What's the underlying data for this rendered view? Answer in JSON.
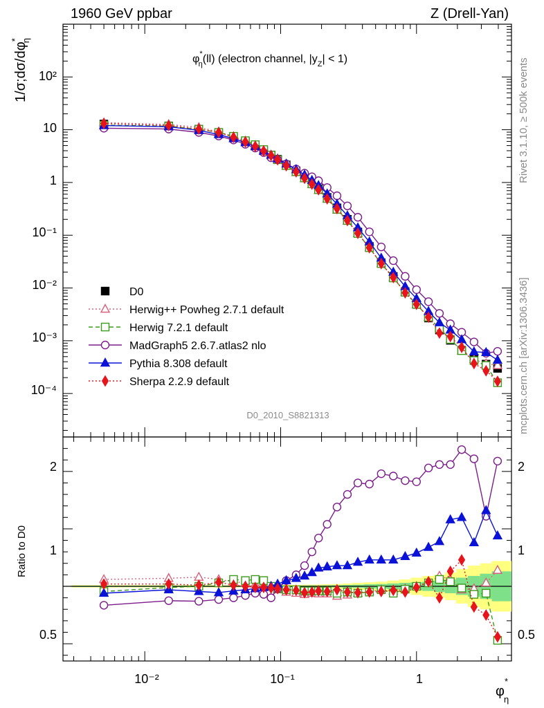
{
  "header": {
    "left_title": "1960 GeV ppbar",
    "right_title": "Z (Drell-Yan)"
  },
  "side_labels": {
    "rivet": "Rivet 3.1.10, ≥ 500k events",
    "mcplots": "mcplots.cern.ch [arXiv:1306.3436]"
  },
  "chart_data": [
    {
      "type": "scatter",
      "title": "φ*η(ll) (electron channel, |yZ| < 1)",
      "title_parts": {
        "phi": "φ",
        "sup": "*",
        "sub": "η",
        "rest": "(ll) (electron channel, |y",
        "sub2": "Z",
        "end": "| < 1)"
      },
      "analysis_label": "D0_2010_S8821313",
      "ylabel": "1/σ;dσ/dφ*η",
      "ylabel_parts": {
        "main": "1/σ;dσ/dφ",
        "sup": "*",
        "sub": "η"
      },
      "xlabel": "φ*η",
      "xlabel_parts": {
        "main": "φ",
        "sup": "*",
        "sub": "η"
      },
      "x_scale": "log",
      "y_scale": "log",
      "xlim": [
        0.0025,
        5
      ],
      "ylim": [
        1.5e-05,
        1000
      ],
      "x_tick_labels": [
        "10⁻²",
        "10⁻¹",
        "1"
      ],
      "y_tick_labels": [
        "10⁻⁴",
        "10⁻³",
        "10⁻²",
        "10⁻¹",
        "1",
        "10",
        "10²"
      ],
      "legend_position": "center-left",
      "x": [
        0.005,
        0.015,
        0.025,
        0.035,
        0.045,
        0.055,
        0.065,
        0.075,
        0.085,
        0.095,
        0.11,
        0.13,
        0.15,
        0.17,
        0.19,
        0.22,
        0.26,
        0.31,
        0.37,
        0.45,
        0.55,
        0.675,
        0.825,
        1.0,
        1.225,
        1.475,
        1.775,
        2.15,
        2.65,
        3.25,
        3.95
      ],
      "series": [
        {
          "name": "D0",
          "color": "#000000",
          "marker": "square-filled",
          "values": [
            12.8,
            11.8,
            10.2,
            8.6,
            7.1,
            5.9,
            4.9,
            4.0,
            3.3,
            2.75,
            2.15,
            1.65,
            1.27,
            0.98,
            0.76,
            0.52,
            0.33,
            0.2,
            0.115,
            0.061,
            0.03,
            0.0165,
            0.0085,
            0.0049,
            0.0027,
            0.0016,
            0.00102,
            0.00066,
            0.00045,
            0.00036,
            0.0003
          ]
        },
        {
          "name": "Herwig++ Powheg 2.7.1 default",
          "color": "#d9607a",
          "marker": "triangle-open",
          "dash": "dotted",
          "values": [
            13.6,
            12.6,
            11.1,
            9.1,
            7.4,
            6.1,
            5.0,
            4.05,
            3.3,
            2.66,
            2.04,
            1.55,
            1.18,
            0.92,
            0.71,
            0.485,
            0.3,
            0.185,
            0.108,
            0.058,
            0.029,
            0.0158,
            0.0083,
            0.0049,
            0.0028,
            0.00175,
            0.00108,
            0.00064,
            0.00044,
            0.00037,
            0.00034
          ]
        },
        {
          "name": "Herwig 7.2.1 default",
          "color": "#3a9a1a",
          "marker": "square-open",
          "dash": "dashed",
          "values": [
            12.2,
            11.7,
            10.2,
            8.9,
            7.5,
            6.2,
            5.2,
            4.2,
            3.3,
            2.7,
            2.09,
            1.6,
            1.22,
            0.94,
            0.73,
            0.5,
            0.31,
            0.19,
            0.108,
            0.058,
            0.029,
            0.0155,
            0.0083,
            0.0049,
            0.0028,
            0.0017,
            0.00106,
            0.00065,
            0.00042,
            0.00034,
            0.00016
          ]
        },
        {
          "name": "MadGraph5 2.6.7.atlas2 nlo",
          "color": "#7b1c8a",
          "marker": "circle-open",
          "dash": "solid",
          "values": [
            10.7,
            10.3,
            8.9,
            7.6,
            6.4,
            5.3,
            4.5,
            3.7,
            2.95,
            2.7,
            2.25,
            1.8,
            1.5,
            1.28,
            1.08,
            0.8,
            0.56,
            0.36,
            0.219,
            0.116,
            0.06,
            0.033,
            0.0166,
            0.0093,
            0.0055,
            0.0033,
            0.0021,
            0.00145,
            0.00095,
            0.00058,
            0.00063
          ]
        },
        {
          "name": "Pythia 8.308 default",
          "color": "#0a12d8",
          "marker": "triangle-filled",
          "dash": "solid",
          "values": [
            12.0,
            11.4,
            9.7,
            8.1,
            6.8,
            5.7,
            4.8,
            3.95,
            3.3,
            2.8,
            2.25,
            1.76,
            1.39,
            1.1,
            0.88,
            0.61,
            0.39,
            0.235,
            0.139,
            0.075,
            0.037,
            0.02,
            0.0107,
            0.0063,
            0.0036,
            0.0022,
            0.0016,
            0.00105,
            0.00062,
            0.0006,
            0.00043
          ]
        },
        {
          "name": "Sherpa 2.2.9 default",
          "color": "#e8141c",
          "marker": "diamond-filled",
          "dash": "dotted",
          "values": [
            13.1,
            12.0,
            10.3,
            8.9,
            7.2,
            5.9,
            4.85,
            3.95,
            3.25,
            2.7,
            2.08,
            1.59,
            1.2,
            0.93,
            0.73,
            0.49,
            0.32,
            0.19,
            0.109,
            0.058,
            0.029,
            0.0158,
            0.0081,
            0.0049,
            0.0028,
            0.0014,
            0.0012,
            0.00075,
            0.00037,
            0.00027,
            0.00017
          ]
        }
      ]
    },
    {
      "type": "line",
      "ylabel": "Ratio to D0",
      "x_scale": "log",
      "ylim": [
        0.35,
        2.3
      ],
      "y_tick_labels": [
        "0.5",
        "1",
        "2"
      ],
      "x": [
        0.005,
        0.015,
        0.025,
        0.035,
        0.045,
        0.055,
        0.065,
        0.075,
        0.085,
        0.095,
        0.11,
        0.13,
        0.15,
        0.17,
        0.19,
        0.22,
        0.26,
        0.31,
        0.37,
        0.45,
        0.55,
        0.675,
        0.825,
        1.0,
        1.225,
        1.475,
        1.775,
        2.15,
        2.65,
        3.25,
        3.95
      ],
      "uncertainty_band": {
        "stat_color": "#7fe08a",
        "syst_color": "#ffff80",
        "stat": [
          0.005,
          0.005,
          0.005,
          0.005,
          0.005,
          0.005,
          0.005,
          0.005,
          0.005,
          0.005,
          0.006,
          0.006,
          0.007,
          0.008,
          0.008,
          0.009,
          0.01,
          0.012,
          0.014,
          0.018,
          0.02,
          0.025,
          0.03,
          0.035,
          0.04,
          0.05,
          0.06,
          0.075,
          0.09,
          0.11,
          0.13
        ],
        "total": [
          0.01,
          0.01,
          0.01,
          0.01,
          0.01,
          0.01,
          0.01,
          0.01,
          0.01,
          0.01,
          0.012,
          0.012,
          0.014,
          0.015,
          0.016,
          0.018,
          0.02,
          0.025,
          0.03,
          0.035,
          0.04,
          0.05,
          0.06,
          0.075,
          0.09,
          0.1,
          0.12,
          0.15,
          0.18,
          0.2,
          0.22
        ]
      },
      "series": [
        {
          "name": "Herwig++ Powheg 2.7.1 default",
          "color": "#d9607a",
          "marker": "triangle-open",
          "dash": "dotted",
          "values": [
            1.06,
            1.07,
            1.08,
            1.06,
            1.04,
            1.03,
            1.02,
            1.01,
            1.0,
            0.97,
            0.95,
            0.94,
            0.93,
            0.94,
            0.935,
            0.935,
            0.915,
            0.925,
            0.94,
            0.955,
            0.97,
            0.96,
            0.98,
            1.0,
            1.04,
            1.09,
            1.06,
            0.97,
            0.98,
            1.03,
            1.14
          ]
        },
        {
          "name": "Herwig 7.2.1 default",
          "color": "#3a9a1a",
          "marker": "square-open",
          "dash": "dashed",
          "values": [
            0.955,
            0.99,
            1.0,
            1.03,
            1.06,
            1.05,
            1.06,
            1.05,
            1.0,
            0.98,
            0.97,
            0.97,
            0.96,
            0.96,
            0.96,
            0.96,
            0.94,
            0.95,
            0.94,
            0.95,
            0.97,
            0.94,
            0.975,
            1.0,
            1.03,
            1.06,
            1.04,
            0.985,
            0.93,
            0.94,
            0.53
          ]
        },
        {
          "name": "MadGraph5 2.6.7.atlas2 nlo",
          "color": "#7b1c8a",
          "marker": "circle-open",
          "dash": "solid",
          "values": [
            0.835,
            0.875,
            0.87,
            0.885,
            0.9,
            0.92,
            0.94,
            0.93,
            0.9,
            0.98,
            1.05,
            1.1,
            1.18,
            1.3,
            1.42,
            1.54,
            1.69,
            1.8,
            1.9,
            1.89,
            1.98,
            1.96,
            1.92,
            1.91,
            2.03,
            2.06,
            2.06,
            2.19,
            2.11,
            1.61,
            2.09
          ]
        },
        {
          "name": "Pythia 8.308 default",
          "color": "#0a12d8",
          "marker": "triangle-filled",
          "dash": "solid",
          "values": [
            0.94,
            0.97,
            0.955,
            0.945,
            0.96,
            0.97,
            0.98,
            0.99,
            1.0,
            1.02,
            1.05,
            1.07,
            1.09,
            1.12,
            1.16,
            1.17,
            1.18,
            1.18,
            1.21,
            1.23,
            1.23,
            1.23,
            1.26,
            1.29,
            1.34,
            1.39,
            1.58,
            1.6,
            1.38,
            1.66,
            1.44
          ]
        },
        {
          "name": "Sherpa 2.2.9 default",
          "color": "#e8141c",
          "marker": "diamond-filled",
          "dash": "dotted",
          "values": [
            1.02,
            1.02,
            1.01,
            1.035,
            1.01,
            1.0,
            0.99,
            0.99,
            0.985,
            0.98,
            0.97,
            0.965,
            0.945,
            0.95,
            0.96,
            0.955,
            0.97,
            0.95,
            0.945,
            0.95,
            0.955,
            0.965,
            0.95,
            0.99,
            1.04,
            0.9,
            1.13,
            1.23,
            0.82,
            0.75,
            0.56
          ]
        }
      ]
    }
  ]
}
